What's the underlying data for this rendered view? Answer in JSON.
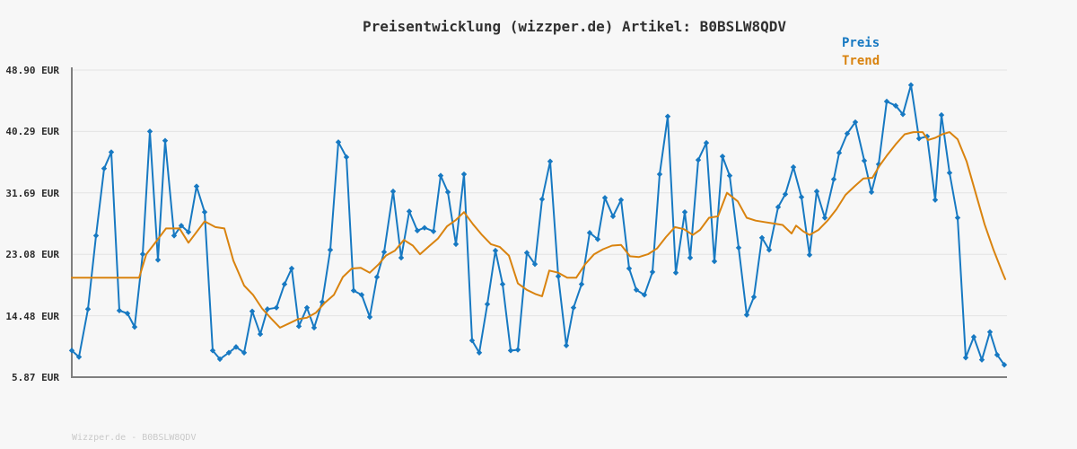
{
  "page": {
    "title": "Preisentwicklung (wizzper.de) Artikel: B0BSLW8QDV",
    "footer": "Wizzper.de - B0BSLW8QDV"
  },
  "legend": {
    "items": [
      {
        "label": "Preis",
        "color": "#1779c2"
      },
      {
        "label": "Trend",
        "color": "#d9830f"
      }
    ]
  },
  "colors": {
    "background": "#f7f7f7",
    "axis": "#7f7f7f",
    "grid": "#e3e3e3",
    "price": "#1779c2",
    "trend": "#d9830f",
    "tick_label": "#2b2b2b",
    "footer_text": "#c9c9c9"
  },
  "chart_data": {
    "type": "line",
    "title": "Preisentwicklung (wizzper.de) Artikel: B0BSLW8QDV",
    "xlabel": "",
    "ylabel": "EUR",
    "grid": true,
    "legend_position": "top-right",
    "ylim": [
      5.87,
      48.9
    ],
    "y_ticks": [
      {
        "label": "48.90 EUR",
        "value": 48.9
      },
      {
        "label": "40.29 EUR",
        "value": 40.29
      },
      {
        "label": "31.69 EUR",
        "value": 31.69
      },
      {
        "label": "23.08 EUR",
        "value": 23.08
      },
      {
        "label": "14.48 EUR",
        "value": 14.48
      },
      {
        "label": "5.87 EUR",
        "value": 5.87
      }
    ],
    "series": [
      {
        "name": "Preis",
        "color": "#1779c2",
        "marker": "diamond",
        "points": [
          [
            80,
            9.6
          ],
          [
            88,
            8.7
          ],
          [
            98,
            15.4
          ],
          [
            107,
            25.7
          ],
          [
            116,
            35.1
          ],
          [
            124,
            37.4
          ],
          [
            133,
            15.2
          ],
          [
            142,
            14.8
          ],
          [
            150,
            12.9
          ],
          [
            159,
            23.1
          ],
          [
            167,
            40.3
          ],
          [
            176,
            22.3
          ],
          [
            184,
            39.0
          ],
          [
            194,
            25.7
          ],
          [
            202,
            27.1
          ],
          [
            210,
            26.2
          ],
          [
            219,
            32.6
          ],
          [
            228,
            29.0
          ],
          [
            237,
            9.6
          ],
          [
            245,
            8.4
          ],
          [
            255,
            9.3
          ],
          [
            263,
            10.1
          ],
          [
            272,
            9.3
          ],
          [
            281,
            15.1
          ],
          [
            290,
            11.9
          ],
          [
            298,
            15.4
          ],
          [
            308,
            15.6
          ],
          [
            317,
            18.9
          ],
          [
            325,
            21.1
          ],
          [
            333,
            13.0
          ],
          [
            342,
            15.6
          ],
          [
            350,
            12.8
          ],
          [
            359,
            16.4
          ],
          [
            368,
            23.7
          ],
          [
            377,
            38.8
          ],
          [
            386,
            36.7
          ],
          [
            394,
            18.0
          ],
          [
            403,
            17.4
          ],
          [
            412,
            14.3
          ],
          [
            420,
            19.9
          ],
          [
            428,
            23.4
          ],
          [
            438,
            31.9
          ],
          [
            447,
            22.6
          ],
          [
            456,
            29.1
          ],
          [
            465,
            26.4
          ],
          [
            473,
            26.8
          ],
          [
            483,
            26.3
          ],
          [
            491,
            34.1
          ],
          [
            499,
            31.8
          ],
          [
            508,
            24.5
          ],
          [
            517,
            34.3
          ],
          [
            526,
            11.0
          ],
          [
            534,
            9.3
          ],
          [
            543,
            16.1
          ],
          [
            552,
            23.6
          ],
          [
            560,
            18.9
          ],
          [
            569,
            9.6
          ],
          [
            577,
            9.7
          ],
          [
            587,
            23.3
          ],
          [
            596,
            21.7
          ],
          [
            604,
            30.8
          ],
          [
            613,
            36.1
          ],
          [
            622,
            20.0
          ],
          [
            631,
            10.3
          ],
          [
            639,
            15.6
          ],
          [
            648,
            18.9
          ],
          [
            657,
            26.1
          ],
          [
            666,
            25.2
          ],
          [
            674,
            31.0
          ],
          [
            683,
            28.4
          ],
          [
            692,
            30.7
          ],
          [
            701,
            21.1
          ],
          [
            709,
            18.1
          ],
          [
            718,
            17.4
          ],
          [
            727,
            20.6
          ],
          [
            735,
            34.3
          ],
          [
            744,
            42.4
          ],
          [
            753,
            20.5
          ],
          [
            763,
            29.0
          ],
          [
            769,
            22.6
          ],
          [
            778,
            36.3
          ],
          [
            787,
            38.7
          ],
          [
            796,
            22.1
          ],
          [
            805,
            36.8
          ],
          [
            813,
            34.1
          ],
          [
            823,
            24.0
          ],
          [
            832,
            14.6
          ],
          [
            840,
            17.1
          ],
          [
            849,
            25.4
          ],
          [
            857,
            23.7
          ],
          [
            867,
            29.7
          ],
          [
            875,
            31.5
          ],
          [
            884,
            35.3
          ],
          [
            893,
            31.1
          ],
          [
            902,
            23.0
          ],
          [
            910,
            31.9
          ],
          [
            919,
            28.2
          ],
          [
            929,
            33.6
          ],
          [
            935,
            37.3
          ],
          [
            944,
            40.0
          ],
          [
            953,
            41.6
          ],
          [
            963,
            36.2
          ],
          [
            971,
            31.8
          ],
          [
            979,
            35.7
          ],
          [
            988,
            44.5
          ],
          [
            998,
            43.9
          ],
          [
            1006,
            42.7
          ],
          [
            1015,
            46.8
          ],
          [
            1024,
            39.3
          ],
          [
            1033,
            39.6
          ],
          [
            1042,
            30.7
          ],
          [
            1049,
            42.6
          ],
          [
            1058,
            34.5
          ],
          [
            1067,
            28.2
          ],
          [
            1076,
            8.6
          ],
          [
            1085,
            11.5
          ],
          [
            1094,
            8.3
          ],
          [
            1103,
            12.2
          ],
          [
            1111,
            9.0
          ],
          [
            1119,
            7.6
          ]
        ]
      },
      {
        "name": "Trend",
        "color": "#d9830f",
        "marker": "none",
        "points": [
          [
            80,
            19.8
          ],
          [
            155,
            19.8
          ],
          [
            163,
            23.1
          ],
          [
            173,
            24.7
          ],
          [
            185,
            26.7
          ],
          [
            200,
            26.7
          ],
          [
            210,
            24.7
          ],
          [
            228,
            27.7
          ],
          [
            240,
            26.9
          ],
          [
            250,
            26.7
          ],
          [
            260,
            22.2
          ],
          [
            272,
            18.7
          ],
          [
            282,
            17.4
          ],
          [
            292,
            15.5
          ],
          [
            302,
            14.1
          ],
          [
            312,
            12.8
          ],
          [
            322,
            13.4
          ],
          [
            332,
            14.0
          ],
          [
            342,
            14.2
          ],
          [
            352,
            14.9
          ],
          [
            362,
            16.3
          ],
          [
            372,
            17.4
          ],
          [
            382,
            19.9
          ],
          [
            392,
            21.1
          ],
          [
            402,
            21.2
          ],
          [
            412,
            20.5
          ],
          [
            422,
            21.7
          ],
          [
            430,
            22.9
          ],
          [
            440,
            23.6
          ],
          [
            450,
            25.1
          ],
          [
            460,
            24.3
          ],
          [
            468,
            23.1
          ],
          [
            478,
            24.2
          ],
          [
            488,
            25.3
          ],
          [
            498,
            27.0
          ],
          [
            508,
            27.9
          ],
          [
            517,
            29.0
          ],
          [
            527,
            27.3
          ],
          [
            537,
            25.8
          ],
          [
            547,
            24.5
          ],
          [
            557,
            24.1
          ],
          [
            567,
            22.9
          ],
          [
            577,
            19.0
          ],
          [
            587,
            18.1
          ],
          [
            597,
            17.5
          ],
          [
            604,
            17.2
          ],
          [
            612,
            20.8
          ],
          [
            622,
            20.5
          ],
          [
            632,
            19.8
          ],
          [
            642,
            19.8
          ],
          [
            652,
            21.7
          ],
          [
            662,
            23.1
          ],
          [
            672,
            23.8
          ],
          [
            682,
            24.3
          ],
          [
            692,
            24.4
          ],
          [
            702,
            22.8
          ],
          [
            712,
            22.7
          ],
          [
            722,
            23.1
          ],
          [
            732,
            23.9
          ],
          [
            742,
            25.5
          ],
          [
            752,
            26.9
          ],
          [
            762,
            26.6
          ],
          [
            772,
            25.8
          ],
          [
            780,
            26.5
          ],
          [
            790,
            28.2
          ],
          [
            800,
            28.4
          ],
          [
            810,
            31.7
          ],
          [
            822,
            30.5
          ],
          [
            832,
            28.2
          ],
          [
            842,
            27.8
          ],
          [
            852,
            27.6
          ],
          [
            862,
            27.4
          ],
          [
            872,
            27.2
          ],
          [
            882,
            26.0
          ],
          [
            887,
            27.1
          ],
          [
            895,
            26.3
          ],
          [
            902,
            25.8
          ],
          [
            912,
            26.5
          ],
          [
            922,
            27.8
          ],
          [
            932,
            29.4
          ],
          [
            942,
            31.4
          ],
          [
            952,
            32.6
          ],
          [
            962,
            33.7
          ],
          [
            972,
            33.8
          ],
          [
            980,
            35.5
          ],
          [
            988,
            36.9
          ],
          [
            998,
            38.5
          ],
          [
            1008,
            39.9
          ],
          [
            1018,
            40.2
          ],
          [
            1028,
            40.2
          ],
          [
            1034,
            39.1
          ],
          [
            1042,
            39.4
          ],
          [
            1050,
            39.9
          ],
          [
            1058,
            40.2
          ],
          [
            1067,
            39.2
          ],
          [
            1077,
            36.1
          ],
          [
            1087,
            31.7
          ],
          [
            1097,
            27.3
          ],
          [
            1107,
            23.7
          ],
          [
            1117,
            20.5
          ],
          [
            1120,
            19.6
          ]
        ]
      }
    ]
  }
}
